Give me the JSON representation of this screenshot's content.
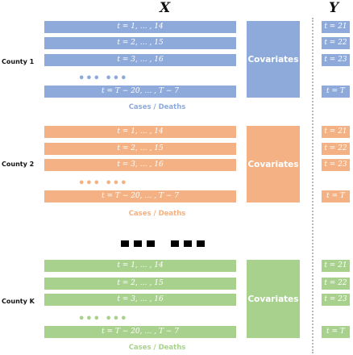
{
  "headers": {
    "x": "X",
    "y": "Y"
  },
  "more_series_marker": "■■■ ■■■",
  "colors": {
    "blue": "#8eaadb",
    "orange": "#f4b183",
    "green": "#a9d18e"
  },
  "counties": [
    {
      "label": "County 1",
      "color": "#8eaadb",
      "rows": [
        "t = 1, … , 14",
        "t = 2, … , 15",
        "t = 3, … , 16",
        "t = T − 20, … , T − 7"
      ],
      "ellipsis": "••• •••",
      "covariates": "Covariates",
      "targets": [
        "t = 21",
        "t = 22",
        "t = 23",
        "t = T"
      ],
      "caption": "Cases / Deaths"
    },
    {
      "label": "County 2",
      "color": "#f4b183",
      "rows": [
        "t = 1, … , 14",
        "t = 2, … , 15",
        "t = 3, … , 16",
        "t = T − 20, … , T − 7"
      ],
      "ellipsis": "••• •••",
      "covariates": "Covariates",
      "targets": [
        "t = 21",
        "t = 22",
        "t = 23",
        "t = T"
      ],
      "caption": "Cases / Deaths"
    },
    {
      "label": "County K",
      "color": "#a9d18e",
      "rows": [
        "t = 1, … , 14",
        "t = 2, … , 15",
        "t = 3, … , 16",
        "t = T − 20, … , T − 7"
      ],
      "ellipsis": "••• •••",
      "covariates": "Covariates",
      "targets": [
        "t = 21",
        "t = 22",
        "t = 23",
        "t = T"
      ],
      "caption": "Cases / Deaths"
    }
  ]
}
